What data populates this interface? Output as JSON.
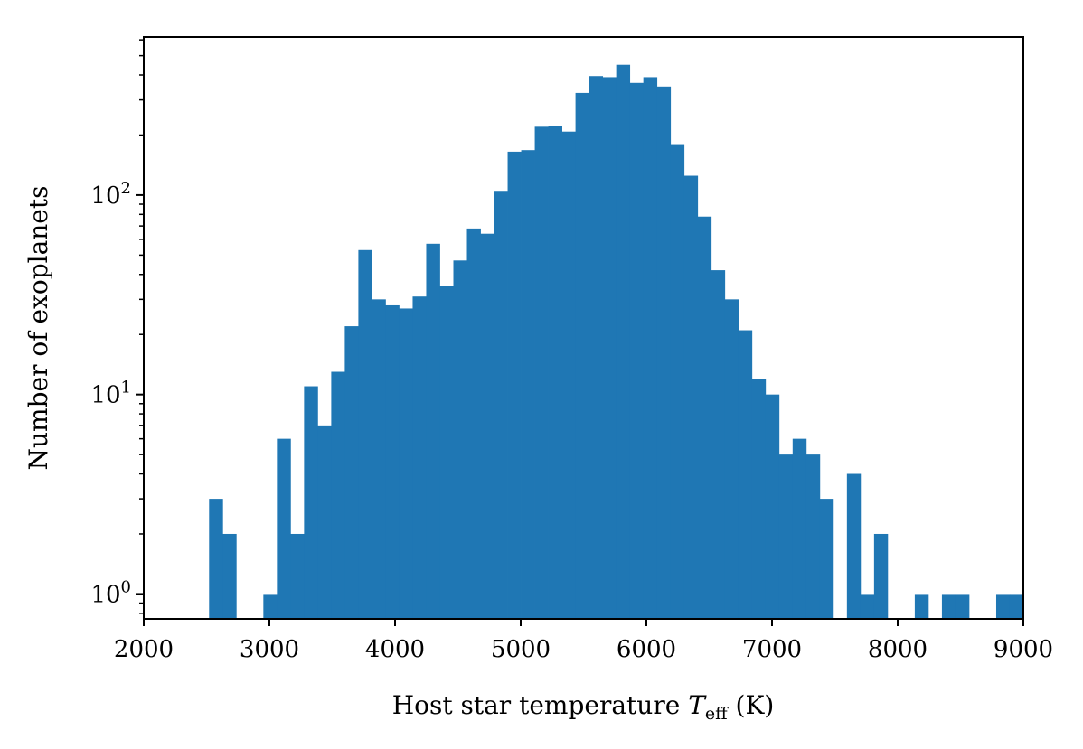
{
  "chart_data": {
    "type": "bar",
    "title": "",
    "xlabel": "Host star temperature",
    "xlabel_symbol": "T",
    "xlabel_subscript": "eff",
    "xlabel_unit": "(K)",
    "ylabel": "Number of exoplanets",
    "xlim": [
      2000,
      9000
    ],
    "ylim": [
      0.75,
      620
    ],
    "yscale": "log",
    "grid": false,
    "bar_color": "#1f77b4",
    "xticks": [
      2000,
      3000,
      4000,
      5000,
      6000,
      7000,
      8000,
      9000
    ],
    "xtick_labels": [
      "2000",
      "3000",
      "4000",
      "5000",
      "6000",
      "7000",
      "8000",
      "9000"
    ],
    "yticks": [
      {
        "value": 1,
        "base": "10",
        "exp": "0"
      },
      {
        "value": 10,
        "base": "10",
        "exp": "1"
      },
      {
        "value": 100,
        "base": "10",
        "exp": "2"
      }
    ],
    "bin_width": 108,
    "bin_starts": [
      2520,
      2628,
      2952,
      3060,
      3168,
      3276,
      3384,
      3492,
      3600,
      3708,
      3816,
      3924,
      4032,
      4140,
      4248,
      4356,
      4464,
      4572,
      4680,
      4788,
      4896,
      5004,
      5112,
      5220,
      5328,
      5436,
      5544,
      5652,
      5760,
      5868,
      5976,
      6084,
      6192,
      6300,
      6408,
      6516,
      6624,
      6732,
      6840,
      6948,
      7056,
      7164,
      7272,
      7380,
      7596,
      7704,
      7812,
      8136,
      8352,
      8460,
      8784,
      8892
    ],
    "values": [
      3,
      2,
      1,
      6,
      2,
      11,
      7,
      13,
      22,
      53,
      30,
      28,
      27,
      31,
      57,
      35,
      47,
      68,
      64,
      105,
      165,
      168,
      220,
      222,
      208,
      325,
      395,
      390,
      450,
      365,
      390,
      350,
      180,
      125,
      78,
      42,
      30,
      21,
      12,
      10,
      5,
      6,
      5,
      3,
      4,
      1,
      2,
      1,
      1,
      1,
      1,
      1
    ]
  }
}
